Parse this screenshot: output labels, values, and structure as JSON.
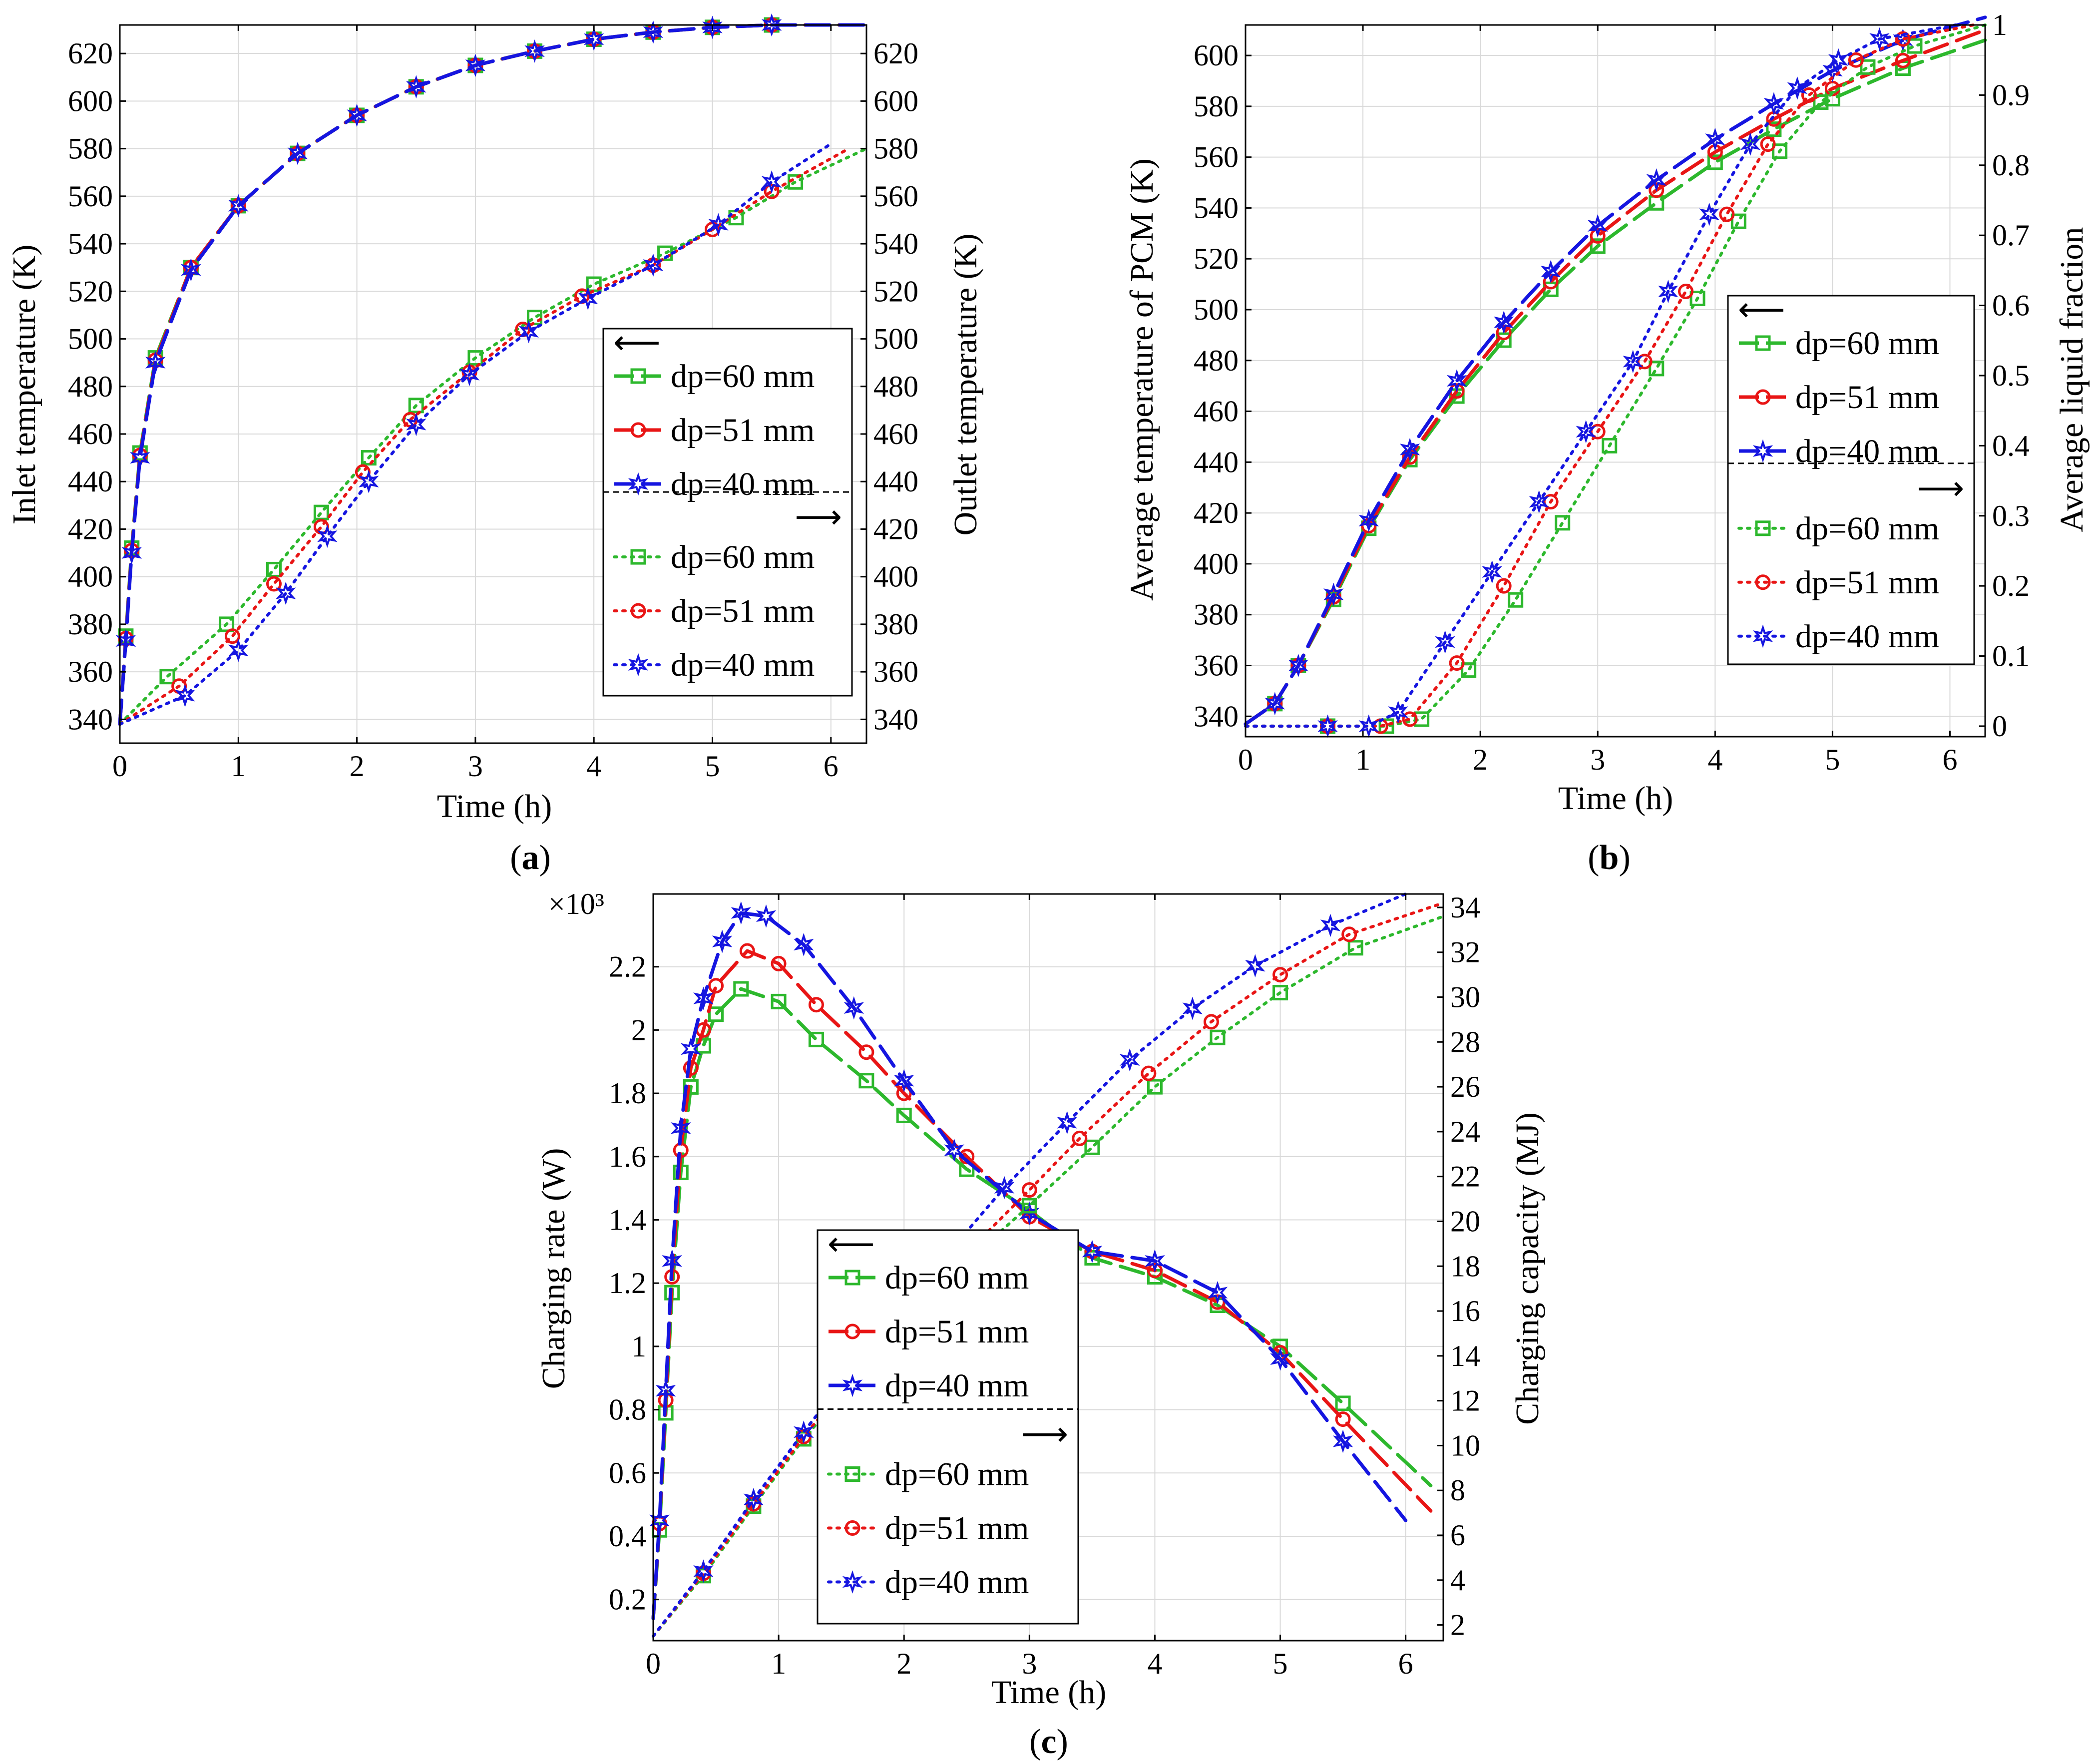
{
  "figure": {
    "panel_labels": [
      "a",
      "b",
      "c"
    ]
  },
  "colors": {
    "dp60": "#2db82d",
    "dp51": "#e81515",
    "dp40": "#1515e0"
  },
  "chart_data": [
    {
      "type": "line",
      "panel": "a",
      "xlabel": "Time (h)",
      "ylabel_left": "Inlet temperature (K)",
      "ylabel_right": "Outlet temperature (K)",
      "xlim": [
        0,
        6.3
      ],
      "ylim_left": [
        330,
        632
      ],
      "ylim_right": [
        330,
        632
      ],
      "xticks": [
        "0",
        "1",
        "2",
        "3",
        "4",
        "5",
        "6"
      ],
      "yticks_left": [
        "340",
        "360",
        "380",
        "400",
        "420",
        "440",
        "460",
        "480",
        "500",
        "520",
        "540",
        "560",
        "580",
        "600",
        "620"
      ],
      "yticks_right": [
        "340",
        "360",
        "380",
        "400",
        "420",
        "440",
        "460",
        "480",
        "500",
        "520",
        "540",
        "560",
        "580",
        "600",
        "620"
      ],
      "legend": {
        "left_arrow": "⟵",
        "right_arrow": "⟶",
        "left_entries": [
          "dp=60 mm",
          "dp=51 mm",
          "dp=40 mm"
        ],
        "right_entries": [
          "dp=60 mm",
          "dp=51 mm",
          "dp=40 mm"
        ]
      },
      "series": [
        {
          "name": "dp=60 mm",
          "axis": "left",
          "marker": "square",
          "style": "dash",
          "x": [
            0,
            0.05,
            0.1,
            0.17,
            0.3,
            0.6,
            1.0,
            1.5,
            2.0,
            2.5,
            3.0,
            3.5,
            4.0,
            4.5,
            5.0,
            5.5,
            6.3
          ],
          "y": [
            338,
            375,
            412,
            452,
            492,
            530,
            556,
            578,
            594,
            606,
            615,
            621,
            626,
            629,
            631,
            632,
            632
          ]
        },
        {
          "name": "dp=51 mm",
          "axis": "left",
          "marker": "circle",
          "style": "dash",
          "x": [
            0,
            0.05,
            0.1,
            0.17,
            0.3,
            0.6,
            1.0,
            1.5,
            2.0,
            2.5,
            3.0,
            3.5,
            4.0,
            4.5,
            5.0,
            5.5,
            6.3
          ],
          "y": [
            338,
            374,
            411,
            451,
            491,
            530,
            556,
            578,
            594,
            606,
            615,
            621,
            626,
            629,
            631,
            632,
            632
          ]
        },
        {
          "name": "dp=40 mm",
          "axis": "left",
          "marker": "star",
          "style": "dash",
          "x": [
            0,
            0.05,
            0.1,
            0.17,
            0.3,
            0.6,
            1.0,
            1.5,
            2.0,
            2.5,
            3.0,
            3.5,
            4.0,
            4.5,
            5.0,
            5.5,
            6.3
          ],
          "y": [
            338,
            373,
            410,
            450,
            490,
            529,
            556,
            578,
            594,
            606,
            615,
            621,
            626,
            629,
            631,
            632,
            632
          ]
        },
        {
          "name": "dp=60 mm",
          "axis": "right",
          "marker": "square",
          "style": "dot",
          "x": [
            0,
            0.4,
            0.9,
            1.3,
            1.7,
            2.1,
            2.5,
            3.0,
            3.5,
            4.0,
            4.6,
            5.2,
            5.7,
            6.3
          ],
          "y": [
            338,
            358,
            380,
            403,
            427,
            450,
            472,
            492,
            509,
            523,
            536,
            551,
            566,
            580
          ]
        },
        {
          "name": "dp=51 mm",
          "axis": "right",
          "marker": "circle",
          "style": "dot",
          "x": [
            0,
            0.5,
            0.95,
            1.3,
            1.7,
            2.05,
            2.45,
            2.95,
            3.4,
            3.9,
            4.5,
            5.0,
            5.5,
            6.15
          ],
          "y": [
            338,
            354,
            375,
            397,
            421,
            444,
            466,
            486,
            504,
            518,
            531,
            546,
            562,
            580
          ]
        },
        {
          "name": "dp=40 mm",
          "axis": "right",
          "marker": "star",
          "style": "dot",
          "x": [
            0,
            0.55,
            1.0,
            1.4,
            1.75,
            2.1,
            2.5,
            2.95,
            3.45,
            3.95,
            4.5,
            5.05,
            5.5,
            6.0
          ],
          "y": [
            338,
            350,
            369,
            393,
            417,
            440,
            464,
            485,
            503,
            517,
            531,
            548,
            566,
            582
          ]
        }
      ]
    },
    {
      "type": "line",
      "panel": "b",
      "xlabel": "Time (h)",
      "ylabel_left": "Average temperature of PCM (K)",
      "ylabel_right": "Average liquid fraction",
      "xlim": [
        0,
        6.3
      ],
      "ylim_left": [
        332,
        612
      ],
      "ylim_right": [
        -0.015,
        1.0
      ],
      "xticks": [
        "0",
        "1",
        "2",
        "3",
        "4",
        "5",
        "6"
      ],
      "yticks_left": [
        "340",
        "360",
        "380",
        "400",
        "420",
        "440",
        "460",
        "480",
        "500",
        "520",
        "540",
        "560",
        "580",
        "600"
      ],
      "yticks_right": [
        "0",
        "0.1",
        "0.2",
        "0.3",
        "0.4",
        "0.5",
        "0.6",
        "0.7",
        "0.8",
        "0.9",
        "1"
      ],
      "legend": {
        "left_arrow": "⟵",
        "right_arrow": "⟶",
        "left_entries": [
          "dp=60 mm",
          "dp=51 mm",
          "dp=40 mm"
        ],
        "right_entries": [
          "dp=60 mm",
          "dp=51 mm",
          "dp=40 mm"
        ]
      },
      "series": [
        {
          "name": "dp=60 mm",
          "axis": "left",
          "marker": "square",
          "style": "dash",
          "x": [
            0,
            0.25,
            0.45,
            0.75,
            1.05,
            1.4,
            1.8,
            2.2,
            2.6,
            3.0,
            3.5,
            4.0,
            4.5,
            5.0,
            5.6,
            6.3
          ],
          "y": [
            337,
            345,
            360,
            386,
            414,
            441,
            466,
            488,
            508,
            525,
            542,
            558,
            571,
            583,
            595,
            606
          ]
        },
        {
          "name": "dp=51 mm",
          "axis": "left",
          "marker": "circle",
          "style": "dash",
          "x": [
            0,
            0.25,
            0.45,
            0.75,
            1.05,
            1.4,
            1.8,
            2.2,
            2.6,
            3.0,
            3.5,
            4.0,
            4.5,
            5.0,
            5.6,
            6.3
          ],
          "y": [
            337,
            345,
            360,
            387,
            415,
            442,
            468,
            491,
            511,
            529,
            547,
            562,
            575,
            587,
            598,
            610
          ]
        },
        {
          "name": "dp=40 mm",
          "axis": "left",
          "marker": "star",
          "style": "dash",
          "x": [
            0,
            0.25,
            0.45,
            0.75,
            1.05,
            1.4,
            1.8,
            2.2,
            2.6,
            3.0,
            3.5,
            4.0,
            4.5,
            5.0,
            5.6,
            6.3
          ],
          "y": [
            337,
            345,
            360,
            388,
            417,
            445,
            472,
            495,
            515,
            533,
            551,
            567,
            581,
            594,
            606,
            615
          ]
        },
        {
          "name": "dp=60 mm",
          "axis": "right",
          "marker": "square",
          "style": "dot",
          "x": [
            0,
            0.7,
            1.2,
            1.5,
            1.9,
            2.3,
            2.7,
            3.1,
            3.5,
            3.85,
            4.2,
            4.55,
            4.9,
            5.3,
            5.7,
            6.3
          ],
          "y": [
            0,
            0,
            0,
            0.01,
            0.08,
            0.18,
            0.29,
            0.4,
            0.51,
            0.61,
            0.72,
            0.82,
            0.89,
            0.94,
            0.97,
            1.0
          ]
        },
        {
          "name": "dp=51 mm",
          "axis": "right",
          "marker": "circle",
          "style": "dot",
          "x": [
            0,
            0.7,
            1.15,
            1.4,
            1.8,
            2.2,
            2.6,
            3.0,
            3.4,
            3.75,
            4.1,
            4.45,
            4.8,
            5.2,
            5.6,
            6.2
          ],
          "y": [
            0,
            0,
            0,
            0.01,
            0.09,
            0.2,
            0.32,
            0.42,
            0.52,
            0.62,
            0.73,
            0.83,
            0.9,
            0.95,
            0.98,
            1.0
          ]
        },
        {
          "name": "dp=40 mm",
          "axis": "right",
          "marker": "star",
          "style": "dot",
          "x": [
            0,
            0.7,
            1.05,
            1.3,
            1.7,
            2.1,
            2.5,
            2.9,
            3.3,
            3.6,
            3.95,
            4.3,
            4.7,
            5.05,
            5.4,
            6.05
          ],
          "y": [
            0,
            0,
            0,
            0.02,
            0.12,
            0.22,
            0.32,
            0.42,
            0.52,
            0.62,
            0.73,
            0.83,
            0.91,
            0.95,
            0.98,
            1.0
          ]
        }
      ]
    },
    {
      "type": "line",
      "panel": "c",
      "xlabel": "Time (h)",
      "ylabel_left": "Charging rate (W)",
      "ylabel_right": "Charging capacity (MJ)",
      "y_multiplier": "×10³",
      "xlim": [
        0,
        6.3
      ],
      "ylim_left": [
        0.07,
        2.43
      ],
      "ylim_right": [
        1.3,
        34.6
      ],
      "xticks": [
        "0",
        "1",
        "2",
        "3",
        "4",
        "5",
        "6"
      ],
      "yticks_left": [
        "0.2",
        "0.4",
        "0.6",
        "0.8",
        "1",
        "1.2",
        "1.4",
        "1.6",
        "1.8",
        "2",
        "2.2"
      ],
      "yticks_right": [
        "2",
        "4",
        "6",
        "8",
        "10",
        "12",
        "14",
        "16",
        "18",
        "20",
        "22",
        "24",
        "26",
        "28",
        "30",
        "32",
        "34"
      ],
      "legend": {
        "left_arrow": "⟵",
        "right_arrow": "⟶",
        "left_entries": [
          "dp=60 mm",
          "dp=51 mm",
          "dp=40 mm"
        ],
        "right_entries": [
          "dp=60 mm",
          "dp=51 mm",
          "dp=40 mm"
        ]
      },
      "series": [
        {
          "name": "dp=60 mm",
          "axis": "left",
          "marker": "square",
          "style": "dash",
          "x": [
            0,
            0.05,
            0.1,
            0.15,
            0.22,
            0.3,
            0.4,
            0.5,
            0.7,
            1.0,
            1.3,
            1.7,
            2.0,
            2.5,
            3.0,
            3.5,
            4.0,
            4.5,
            5.0,
            5.5,
            6.2
          ],
          "y": [
            0.14,
            0.42,
            0.79,
            1.17,
            1.55,
            1.82,
            1.95,
            2.05,
            2.13,
            2.09,
            1.97,
            1.84,
            1.73,
            1.56,
            1.43,
            1.28,
            1.22,
            1.13,
            1.0,
            0.82,
            0.56
          ]
        },
        {
          "name": "dp=51 mm",
          "axis": "left",
          "marker": "circle",
          "style": "dash",
          "x": [
            0,
            0.05,
            0.1,
            0.15,
            0.22,
            0.3,
            0.4,
            0.5,
            0.75,
            1.0,
            1.3,
            1.7,
            2.0,
            2.5,
            3.0,
            3.5,
            4.0,
            4.5,
            5.0,
            5.5,
            6.2
          ],
          "y": [
            0.14,
            0.44,
            0.83,
            1.22,
            1.62,
            1.88,
            2.0,
            2.14,
            2.25,
            2.21,
            2.08,
            1.93,
            1.8,
            1.6,
            1.41,
            1.3,
            1.24,
            1.14,
            0.98,
            0.77,
            0.48
          ]
        },
        {
          "name": "dp=40 mm",
          "axis": "left",
          "marker": "star",
          "style": "dash",
          "x": [
            0,
            0.05,
            0.1,
            0.15,
            0.22,
            0.3,
            0.4,
            0.55,
            0.7,
            0.9,
            1.2,
            1.6,
            2.0,
            2.4,
            3.0,
            3.5,
            4.0,
            4.5,
            5.0,
            5.5,
            6.0
          ],
          "y": [
            0.14,
            0.45,
            0.86,
            1.27,
            1.69,
            1.94,
            2.1,
            2.28,
            2.37,
            2.36,
            2.27,
            2.07,
            1.84,
            1.62,
            1.42,
            1.3,
            1.27,
            1.17,
            0.96,
            0.7,
            0.45
          ]
        },
        {
          "name": "dp=60 mm",
          "axis": "right",
          "marker": "square",
          "style": "dot",
          "x": [
            0,
            0.4,
            0.8,
            1.2,
            1.6,
            2.0,
            2.5,
            3.0,
            3.5,
            4.0,
            4.5,
            5.0,
            5.6,
            6.3
          ],
          "y": [
            1.5,
            4.2,
            7.3,
            10.3,
            12.9,
            15.4,
            18.2,
            20.7,
            23.3,
            26.0,
            28.2,
            30.2,
            32.2,
            33.6
          ]
        },
        {
          "name": "dp=51 mm",
          "axis": "right",
          "marker": "circle",
          "style": "dot",
          "x": [
            0,
            0.4,
            0.8,
            1.2,
            1.6,
            2.0,
            2.5,
            3.0,
            3.4,
            3.95,
            4.45,
            5.0,
            5.55,
            6.3
          ],
          "y": [
            1.5,
            4.3,
            7.4,
            10.4,
            13.1,
            15.7,
            18.6,
            21.4,
            23.7,
            26.6,
            28.9,
            31.0,
            32.8,
            34.2
          ]
        },
        {
          "name": "dp=40 mm",
          "axis": "right",
          "marker": "star",
          "style": "dot",
          "x": [
            0,
            0.4,
            0.8,
            1.2,
            1.6,
            2.0,
            2.4,
            2.8,
            3.3,
            3.8,
            4.3,
            4.8,
            5.4,
            6.0
          ],
          "y": [
            1.5,
            4.4,
            7.6,
            10.6,
            13.5,
            16.2,
            18.9,
            21.5,
            24.4,
            27.2,
            29.5,
            31.4,
            33.2,
            34.6
          ]
        }
      ]
    }
  ]
}
